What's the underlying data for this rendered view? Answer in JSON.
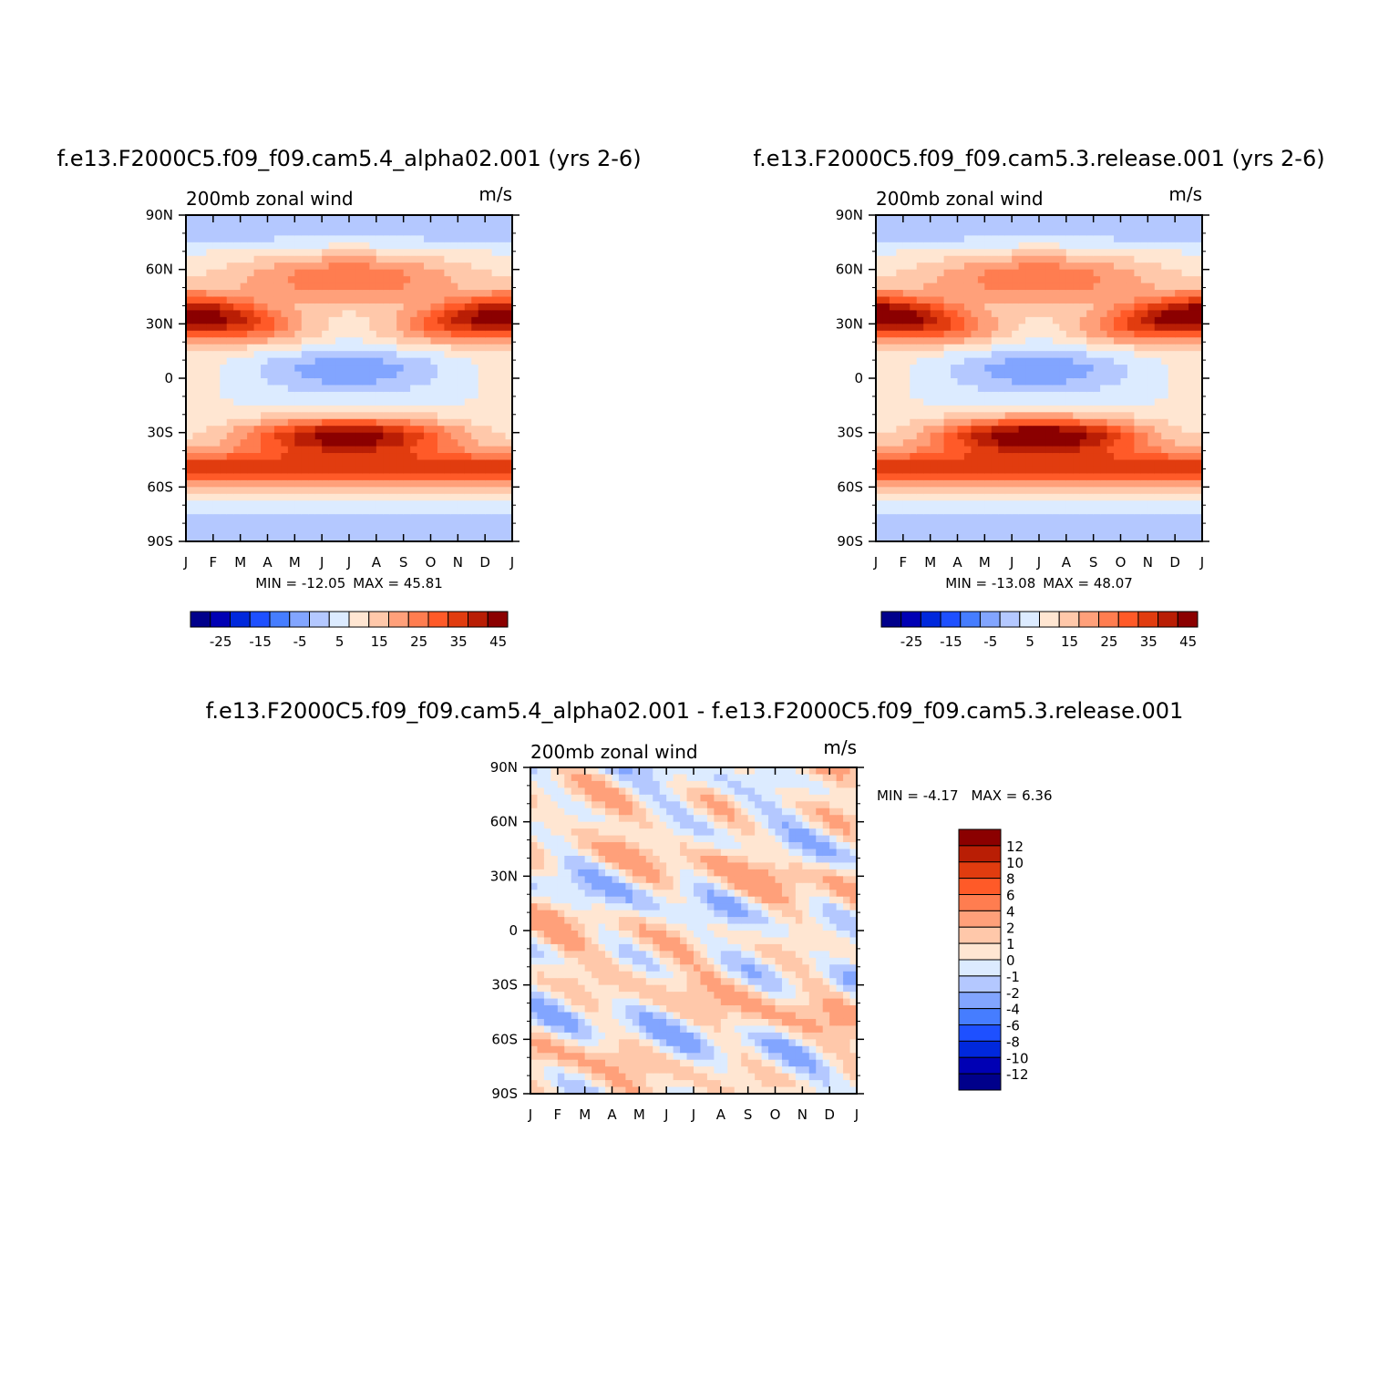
{
  "chart_data": [
    {
      "type": "heatmap",
      "title": "f.e13.F2000C5.f09_f09.cam5.4_alpha02.001 (yrs 2-6)",
      "left_label": "200mb zonal wind",
      "right_label": "m/s",
      "x_tick_labels": [
        "J",
        "F",
        "M",
        "A",
        "M",
        "J",
        "J",
        "A",
        "S",
        "O",
        "N",
        "D",
        "J"
      ],
      "y_tick_labels": [
        "90N",
        "60N",
        "30N",
        "0",
        "30S",
        "60S",
        "90S"
      ],
      "min_label": "MIN = -12.05",
      "max_label": "MAX = 45.81",
      "min": -12.05,
      "max": 45.81,
      "colorbar_labels": [
        "-25",
        "-15",
        "-5",
        "5",
        "15",
        "25",
        "35",
        "45"
      ],
      "colorbar_levels": [
        -30,
        -25,
        -20,
        -15,
        -10,
        -5,
        0,
        5,
        10,
        15,
        20,
        25,
        30,
        35,
        40,
        45
      ]
    },
    {
      "type": "heatmap",
      "title": "f.e13.F2000C5.f09_f09.cam5.3.release.001 (yrs 2-6)",
      "left_label": "200mb zonal wind",
      "right_label": "m/s",
      "x_tick_labels": [
        "J",
        "F",
        "M",
        "A",
        "M",
        "J",
        "J",
        "A",
        "S",
        "O",
        "N",
        "D",
        "J"
      ],
      "y_tick_labels": [
        "90N",
        "60N",
        "30N",
        "0",
        "30S",
        "60S",
        "90S"
      ],
      "min_label": "MIN = -13.08",
      "max_label": "MAX = 48.07",
      "min": -13.08,
      "max": 48.07,
      "colorbar_labels": [
        "-25",
        "-15",
        "-5",
        "5",
        "15",
        "25",
        "35",
        "45"
      ],
      "colorbar_levels": [
        -30,
        -25,
        -20,
        -15,
        -10,
        -5,
        0,
        5,
        10,
        15,
        20,
        25,
        30,
        35,
        40,
        45
      ]
    },
    {
      "type": "heatmap",
      "title": "f.e13.F2000C5.f09_f09.cam5.4_alpha02.001 - f.e13.F2000C5.f09_f09.cam5.3.release.001",
      "left_label": "200mb zonal wind",
      "right_label": "m/s",
      "x_tick_labels": [
        "J",
        "F",
        "M",
        "A",
        "M",
        "J",
        "J",
        "A",
        "S",
        "O",
        "N",
        "D",
        "J"
      ],
      "y_tick_labels": [
        "90N",
        "60N",
        "30N",
        "0",
        "30S",
        "60S",
        "90S"
      ],
      "min_label": "MIN = -4.17",
      "max_label": "MAX = 6.36",
      "min": -4.17,
      "max": 6.36,
      "colorbar_labels": [
        "12",
        "10",
        "8",
        "6",
        "4",
        "2",
        "1",
        "0",
        "-1",
        "-2",
        "-4",
        "-6",
        "-8",
        "-10",
        "-12"
      ],
      "colorbar_levels": [
        12,
        10,
        8,
        6,
        4,
        2,
        1,
        0,
        -1,
        -2,
        -4,
        -6,
        -8,
        -10,
        -12
      ]
    }
  ],
  "palette": {
    "blues": [
      "#00008b",
      "#0000b4",
      "#0028dc",
      "#1e50ff",
      "#467dff",
      "#82a5ff",
      "#b4c8ff",
      "#dcebff"
    ],
    "reds": [
      "#ffe6d2",
      "#ffc8aa",
      "#ffa07a",
      "#ff7d50",
      "#ff5a28",
      "#e13c0f",
      "#b91e05",
      "#8b0000"
    ]
  }
}
